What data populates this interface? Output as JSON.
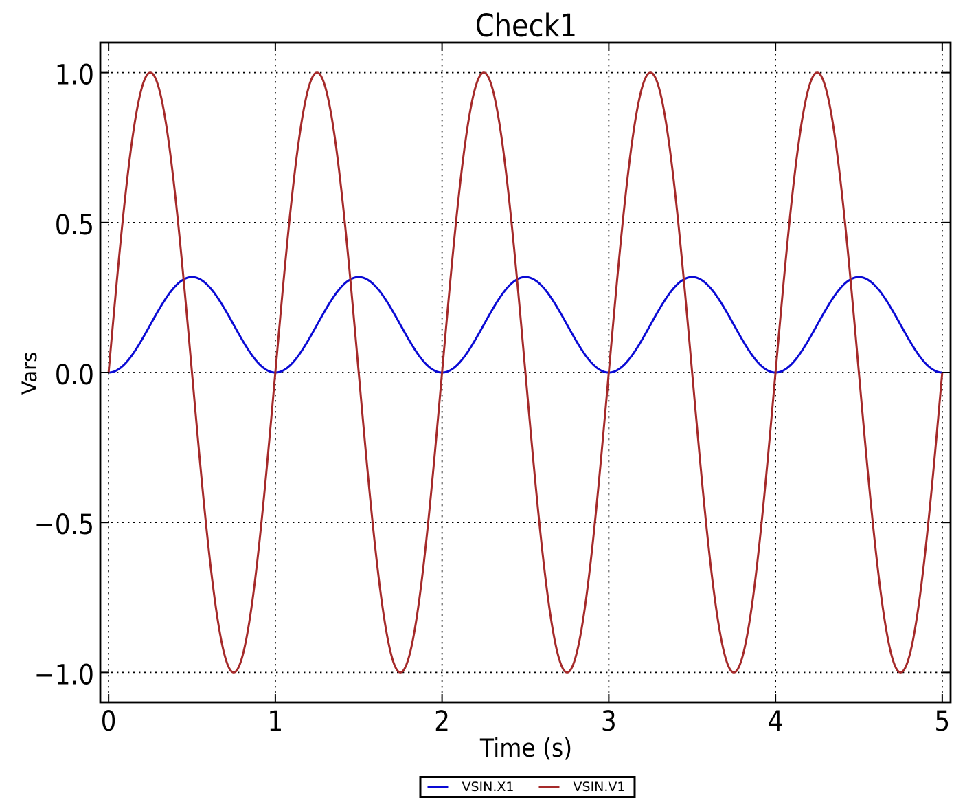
{
  "title": "Check1",
  "chart_data": {
    "type": "line",
    "title": "Check1",
    "xlabel": "Time (s)",
    "ylabel": "Vars",
    "xlim": [
      -0.05,
      5.05
    ],
    "ylim": [
      -1.1,
      1.1
    ],
    "xticks": [
      0,
      1,
      2,
      3,
      4,
      5
    ],
    "yticks": [
      -1.0,
      -0.5,
      0.0,
      0.5,
      1.0
    ],
    "xtick_labels": [
      "0",
      "1",
      "2",
      "3",
      "4",
      "5"
    ],
    "ytick_labels": [
      "−1.0",
      "−0.5",
      "0.0",
      "0.5",
      "1.0"
    ],
    "grid": "dotted",
    "legend_position": "below axes, centered",
    "series": [
      {
        "name": "VSIN.X1",
        "color": "#0a0ad4",
        "model": "sinusoid",
        "description": "y = offset + amplitude*sin(2*pi*frequency*t + phase)",
        "amplitude": 0.159155,
        "frequency_hz": 1,
        "phase_deg": -90,
        "offset": 0.159155,
        "peak_value": 0.3183,
        "x_start": 0,
        "x_end": 5
      },
      {
        "name": "VSIN.V1",
        "color": "#a52a2a",
        "model": "sinusoid",
        "description": "y = offset + amplitude*sin(2*pi*frequency*t + phase)",
        "amplitude": 1.0,
        "frequency_hz": 1,
        "phase_deg": 0,
        "offset": 0.0,
        "peak_value": 1.0,
        "x_start": 0,
        "x_end": 5
      }
    ]
  },
  "legend": {
    "entries": [
      {
        "label": "VSIN.X1",
        "color": "#0a0ad4"
      },
      {
        "label": "VSIN.V1",
        "color": "#a52a2a"
      }
    ]
  }
}
